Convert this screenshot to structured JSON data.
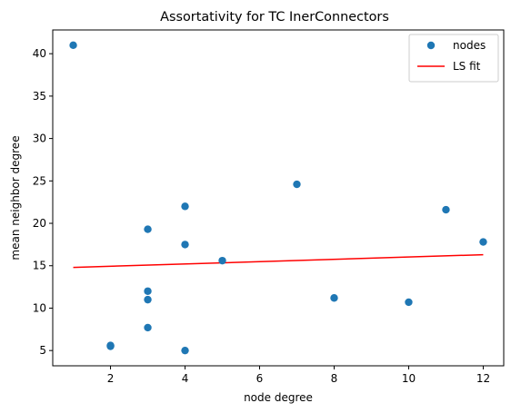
{
  "chart_data": {
    "type": "scatter",
    "title": "Assortativity for TC InerConnectors",
    "xlabel": "node degree",
    "ylabel": "mean neighbor degree",
    "xlim": [
      0.45,
      12.55
    ],
    "ylim": [
      3.2,
      42.8
    ],
    "xticks": [
      2,
      4,
      6,
      8,
      10,
      12
    ],
    "yticks": [
      5,
      10,
      15,
      20,
      25,
      30,
      35,
      40
    ],
    "grid": false,
    "legend": {
      "placement": "top-right",
      "entries": [
        {
          "label": "nodes",
          "kind": "marker"
        },
        {
          "label": "LS fit",
          "kind": "line"
        }
      ]
    },
    "series": [
      {
        "name": "nodes",
        "kind": "scatter",
        "color": "#1f77b4",
        "points": [
          {
            "x": 1,
            "y": 41.0
          },
          {
            "x": 2,
            "y": 5.5
          },
          {
            "x": 2,
            "y": 5.6
          },
          {
            "x": 3,
            "y": 19.3
          },
          {
            "x": 3,
            "y": 12.0
          },
          {
            "x": 3,
            "y": 11.0
          },
          {
            "x": 3,
            "y": 7.7
          },
          {
            "x": 4,
            "y": 22.0
          },
          {
            "x": 4,
            "y": 17.5
          },
          {
            "x": 4,
            "y": 5.0
          },
          {
            "x": 5,
            "y": 15.6
          },
          {
            "x": 7,
            "y": 24.6
          },
          {
            "x": 8,
            "y": 11.2
          },
          {
            "x": 10,
            "y": 10.7
          },
          {
            "x": 11,
            "y": 21.6
          },
          {
            "x": 12,
            "y": 17.8
          }
        ]
      },
      {
        "name": "LS fit",
        "kind": "line",
        "color": "#ff0000",
        "points": [
          {
            "x": 1,
            "y": 14.8
          },
          {
            "x": 12,
            "y": 16.3
          }
        ]
      }
    ]
  }
}
